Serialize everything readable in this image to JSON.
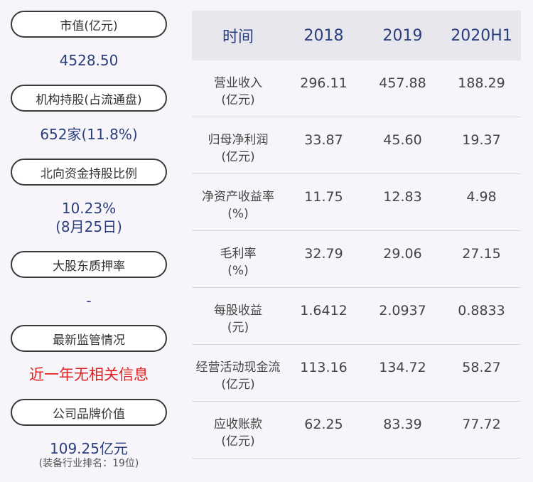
{
  "left": {
    "market_cap": {
      "label": "市值(亿元)",
      "value": "4528.50"
    },
    "institution": {
      "label": "机构持股(占流通盘)",
      "value": "652家(11.8%)"
    },
    "northbound": {
      "label": "北向资金持股比例",
      "value": "10.23%",
      "value2": "(8月25日)"
    },
    "pledge": {
      "label": "大股东质押率",
      "value": "-"
    },
    "regulation": {
      "label": "最新监管情况",
      "value": "近一年无相关信息"
    },
    "brand": {
      "label": "公司品牌价值",
      "value": "109.25亿元",
      "note": "(装备行业排名：19位)"
    }
  },
  "table": {
    "headers": [
      "时间",
      "2018",
      "2019",
      "2020H1"
    ],
    "rows": [
      {
        "label1": "营业收入",
        "label2": "(亿元)",
        "values": [
          "296.11",
          "457.88",
          "188.29"
        ]
      },
      {
        "label1": "归母净利润",
        "label2": "(亿元)",
        "values": [
          "33.87",
          "45.60",
          "19.37"
        ]
      },
      {
        "label1": "净资产收益率",
        "label2": "(%)",
        "values": [
          "11.75",
          "12.83",
          "4.98"
        ]
      },
      {
        "label1": "毛利率",
        "label2": "(%)",
        "values": [
          "32.79",
          "29.06",
          "27.15"
        ]
      },
      {
        "label1": "每股收益",
        "label2": "(元)",
        "values": [
          "1.6412",
          "2.0937",
          "0.8833"
        ]
      },
      {
        "label1": "经营活动现金流",
        "label2": "(亿元)",
        "values": [
          "113.16",
          "134.72",
          "58.27"
        ]
      },
      {
        "label1": "应收账款",
        "label2": "(亿元)",
        "values": [
          "62.25",
          "83.39",
          "77.72"
        ]
      }
    ]
  }
}
